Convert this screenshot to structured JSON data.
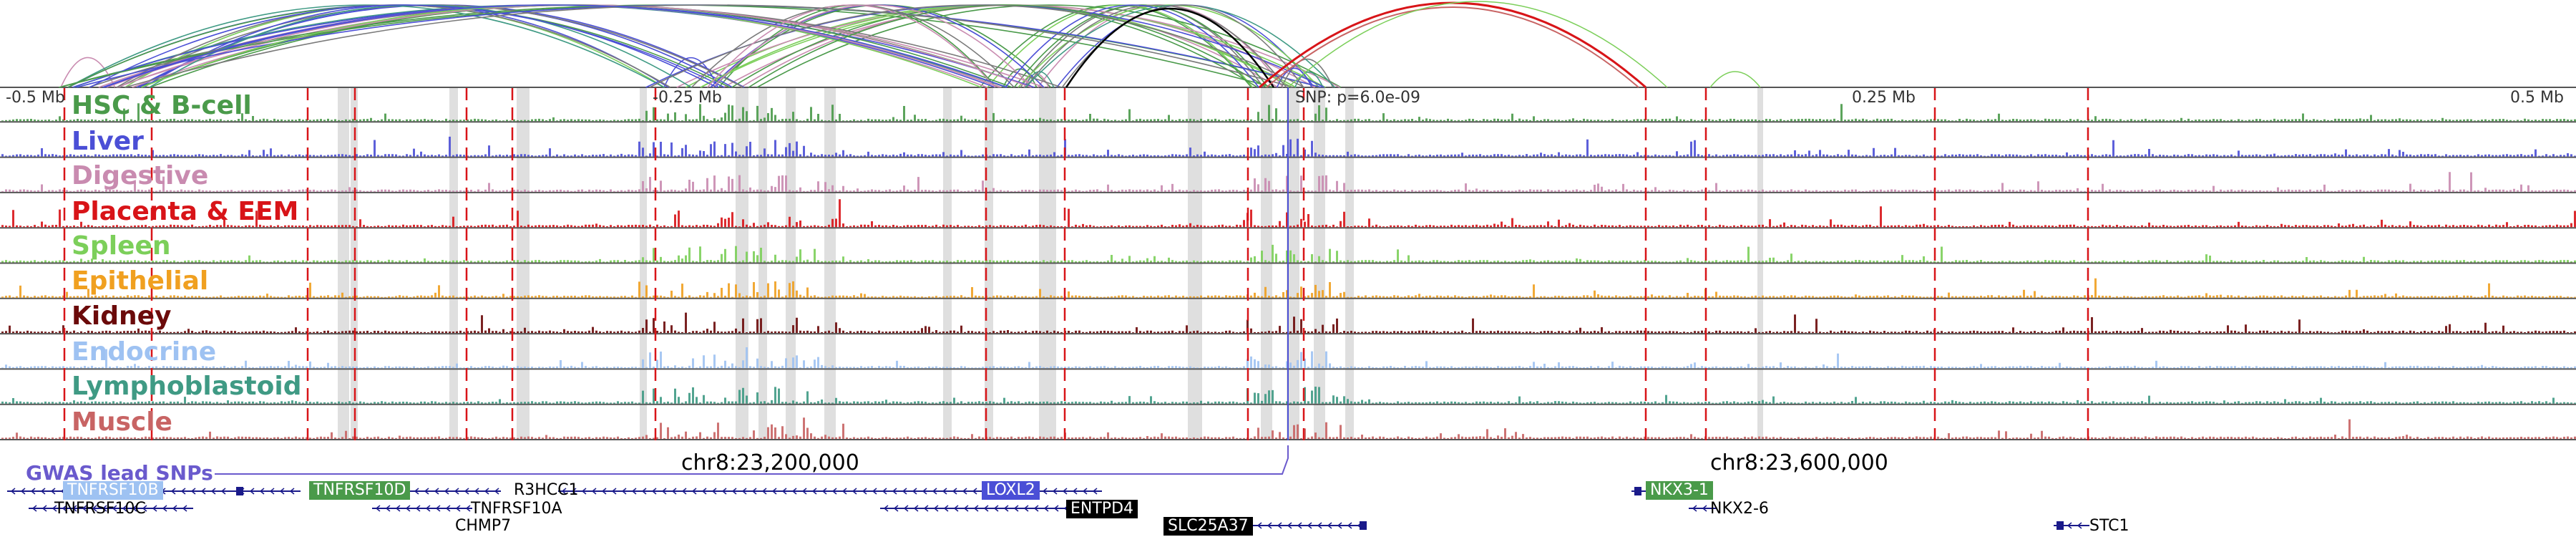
{
  "scale_labels": [
    "-0.5 Mb",
    "-0.25 Mb",
    "0.25 Mb",
    "0.5 Mb"
  ],
  "snp_label": "SNP: p=6.0e-09",
  "coordinate_labels": [
    "chr8:23,200,000",
    "chr8:23,600,000"
  ],
  "gwas_label": "GWAS lead SNPs",
  "tracks": [
    {
      "name": "HSC & B-cell",
      "color": "#4a9a4a"
    },
    {
      "name": "Liver",
      "color": "#4b4fd6"
    },
    {
      "name": "Digestive",
      "color": "#c98bb0"
    },
    {
      "name": "Placenta & EEM",
      "color": "#d81418"
    },
    {
      "name": "Spleen",
      "color": "#7ccf5a"
    },
    {
      "name": "Epithelial",
      "color": "#f0a020"
    },
    {
      "name": "Kidney",
      "color": "#6b0a0a"
    },
    {
      "name": "Endocrine",
      "color": "#9ec2f2"
    },
    {
      "name": "Lymphoblastoid",
      "color": "#3f9a84"
    },
    {
      "name": "Muscle",
      "color": "#c86464"
    }
  ],
  "genes_highlighted": [
    {
      "name": "TNFRSF10B",
      "color": "#9ec2f2"
    },
    {
      "name": "TNFRSF10D",
      "color": "#4a9a4a"
    },
    {
      "name": "LOXL2",
      "color": "#4b4fd6"
    },
    {
      "name": "ENTPD4",
      "color": "#000000"
    },
    {
      "name": "SLC25A37",
      "color": "#000000"
    },
    {
      "name": "NKX3-1",
      "color": "#4a9a4a"
    }
  ],
  "genes_plain": [
    "TNFRSF10C",
    "TNFRSF10A",
    "R3HCC1",
    "CHMP7",
    "NKX2-6",
    "STC1"
  ]
}
